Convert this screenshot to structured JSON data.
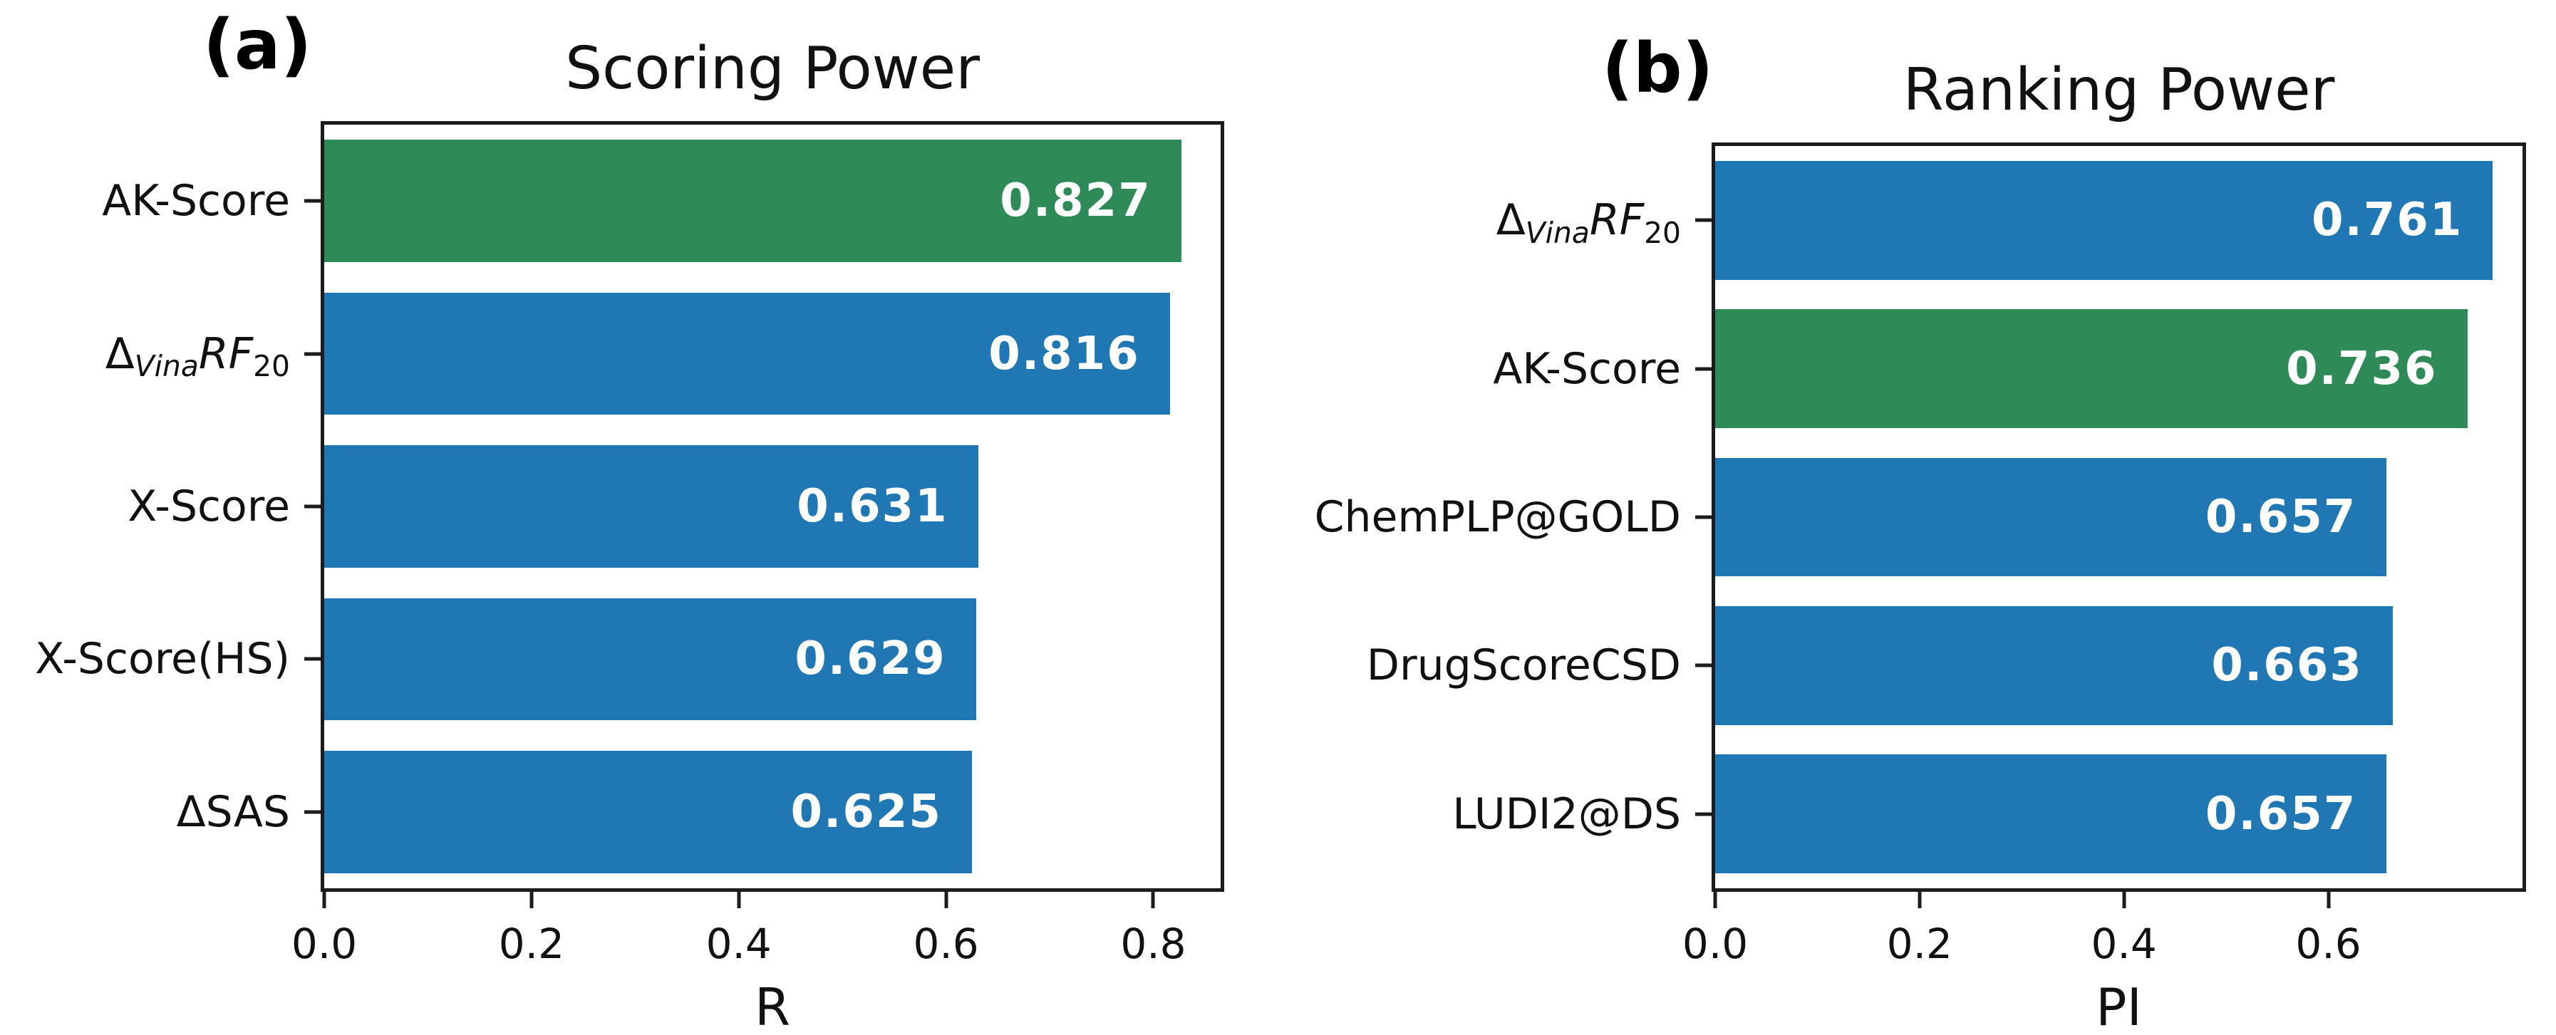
{
  "figure": {
    "colors": {
      "green": "#2e8b57",
      "blue": "#1f77b4",
      "spine": "#1c1c1c",
      "bar_label": "#ffffff",
      "text": "#000000"
    }
  },
  "chart_data": [
    {
      "panel_label": "(a)",
      "type": "bar",
      "orientation": "horizontal",
      "title": "Scoring Power",
      "xlabel": "R",
      "xlim": [
        0,
        0.865
      ],
      "grid": false,
      "legend": null,
      "xticks": [
        {
          "label": "0.0",
          "value": 0.0
        },
        {
          "label": "0.2",
          "value": 0.2
        },
        {
          "label": "0.4",
          "value": 0.4
        },
        {
          "label": "0.6",
          "value": 0.6
        },
        {
          "label": "0.8",
          "value": 0.8
        }
      ],
      "bars": [
        {
          "category": "AK-Score",
          "category_segments": [
            {
              "t": "AK-Score",
              "s": "n"
            }
          ],
          "value": 0.827,
          "label": "0.827",
          "color": "green"
        },
        {
          "category": "ΔVinaRF20",
          "category_segments": [
            {
              "t": "Δ",
              "s": "n"
            },
            {
              "t": "Vina",
              "s": "si"
            },
            {
              "t": "RF",
              "s": "i"
            },
            {
              "t": "20",
              "s": "s"
            }
          ],
          "value": 0.816,
          "label": "0.816",
          "color": "blue"
        },
        {
          "category": "X-Score",
          "category_segments": [
            {
              "t": "X-Score",
              "s": "n"
            }
          ],
          "value": 0.631,
          "label": "0.631",
          "color": "blue"
        },
        {
          "category": "X-Score(HS)",
          "category_segments": [
            {
              "t": "X-Score(HS)",
              "s": "n"
            }
          ],
          "value": 0.629,
          "label": "0.629",
          "color": "blue"
        },
        {
          "category": "ΔSAS",
          "category_segments": [
            {
              "t": "ΔSAS",
              "s": "n"
            }
          ],
          "value": 0.625,
          "label": "0.625",
          "color": "blue"
        }
      ]
    },
    {
      "panel_label": "(b)",
      "type": "bar",
      "orientation": "horizontal",
      "title": "Ranking Power",
      "xlabel": "PI",
      "xlim": [
        0,
        0.79
      ],
      "grid": false,
      "legend": null,
      "xticks": [
        {
          "label": "0.0",
          "value": 0.0
        },
        {
          "label": "0.2",
          "value": 0.2
        },
        {
          "label": "0.4",
          "value": 0.4
        },
        {
          "label": "0.6",
          "value": 0.6
        }
      ],
      "bars": [
        {
          "category": "ΔVinaRF20",
          "category_segments": [
            {
              "t": "Δ",
              "s": "n"
            },
            {
              "t": "Vina",
              "s": "si"
            },
            {
              "t": "RF",
              "s": "i"
            },
            {
              "t": "20",
              "s": "s"
            }
          ],
          "value": 0.761,
          "label": "0.761",
          "color": "blue"
        },
        {
          "category": "AK-Score",
          "category_segments": [
            {
              "t": "AK-Score",
              "s": "n"
            }
          ],
          "value": 0.736,
          "label": "0.736",
          "color": "green"
        },
        {
          "category": "ChemPLP@GOLD",
          "category_segments": [
            {
              "t": "ChemPLP@GOLD",
              "s": "n"
            }
          ],
          "value": 0.657,
          "label": "0.657",
          "color": "blue"
        },
        {
          "category": "DrugScoreCSD",
          "category_segments": [
            {
              "t": "DrugScoreCSD",
              "s": "n"
            }
          ],
          "value": 0.663,
          "label": "0.663",
          "color": "blue"
        },
        {
          "category": "LUDI2@DS",
          "category_segments": [
            {
              "t": "LUDI2@DS",
              "s": "n"
            }
          ],
          "value": 0.657,
          "label": "0.657",
          "color": "blue"
        }
      ]
    }
  ]
}
